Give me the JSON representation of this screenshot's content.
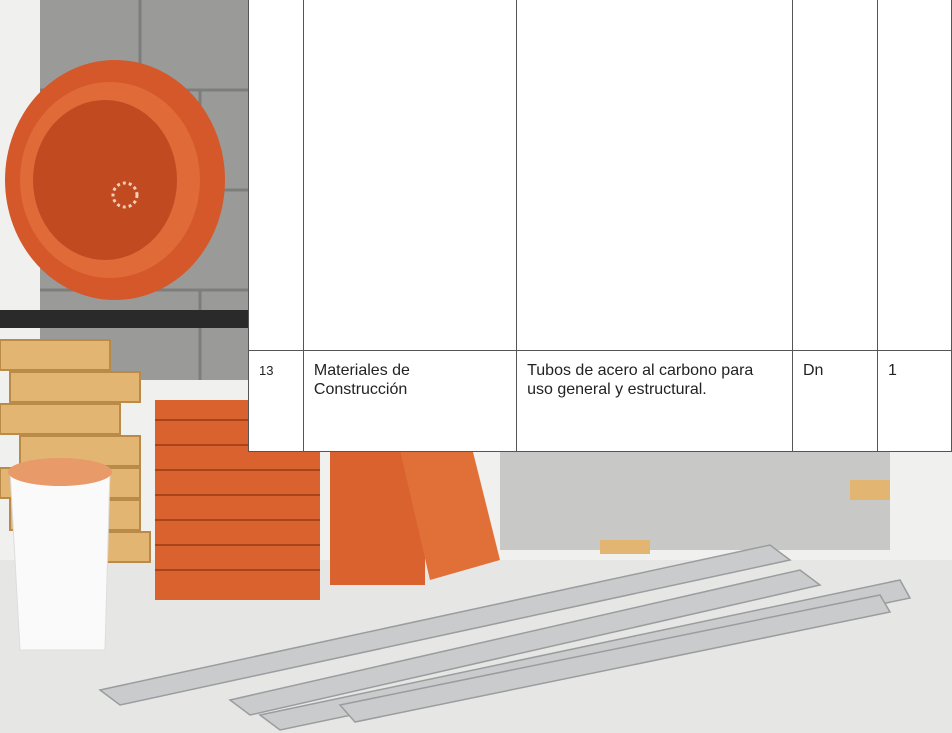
{
  "table": {
    "rows": [
      [
        "13",
        "Materiales de Construcción",
        "Tubos de acero al carbono para uso general y estructural.",
        "Dn",
        "1"
      ]
    ]
  }
}
